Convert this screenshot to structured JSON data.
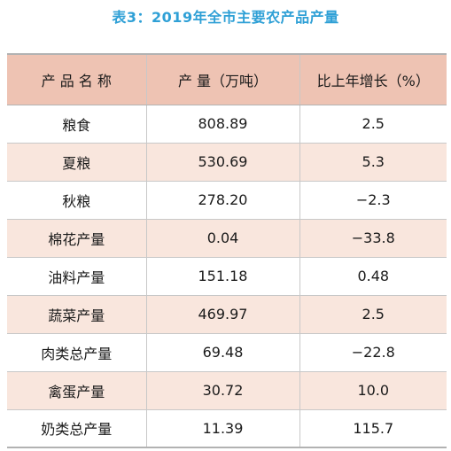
{
  "title": "表3：2019年全市主要农产品产量",
  "table": {
    "headers": [
      "产 品 名 称",
      "产 量（万吨）",
      "比上年增长（%）"
    ],
    "rows": [
      [
        "粮食",
        "808.89",
        "2.5"
      ],
      [
        "夏粮",
        "530.69",
        "5.3"
      ],
      [
        "秋粮",
        "278.20",
        "−2.3"
      ],
      [
        "棉花产量",
        "0.04",
        "−33.8"
      ],
      [
        "油料产量",
        "151.18",
        "0.48"
      ],
      [
        "蔬菜产量",
        "469.97",
        "2.5"
      ],
      [
        "肉类总产量",
        "69.48",
        "−22.8"
      ],
      [
        "禽蛋产量",
        "30.72",
        "10.0"
      ],
      [
        "奶类总产量",
        "11.39",
        "115.7"
      ]
    ]
  }
}
